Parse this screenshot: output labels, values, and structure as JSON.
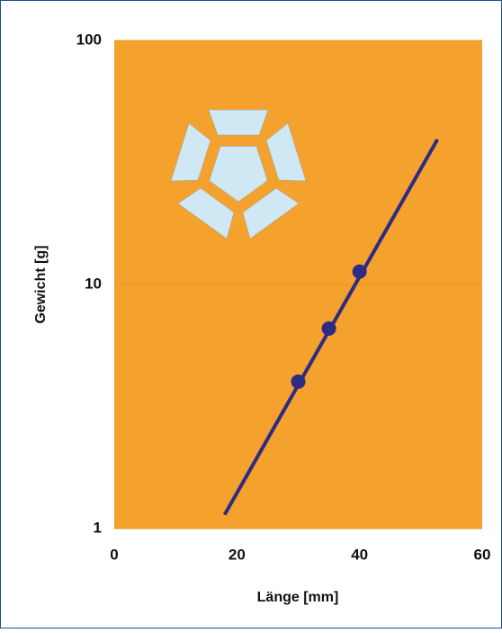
{
  "chart_data": {
    "type": "scatter",
    "xlabel": "Länge [mm]",
    "ylabel": "Gewicht [g]",
    "xlim": [
      0,
      60
    ],
    "xticks": [
      0,
      20,
      40,
      60
    ],
    "ylim": [
      1,
      100
    ],
    "yticks": [
      1,
      10,
      100
    ],
    "yscale": "log",
    "grid": true,
    "background": "#f4a12e",
    "series": [
      {
        "mode": "markers",
        "color": "#2e2b82",
        "x": [
          30,
          35,
          40
        ],
        "values": [
          4.0,
          6.6,
          11.3
        ]
      },
      {
        "mode": "line",
        "color": "#2e2b82",
        "x": [
          18,
          52.7
        ],
        "values": [
          1.14,
          39.3
        ]
      }
    ]
  }
}
